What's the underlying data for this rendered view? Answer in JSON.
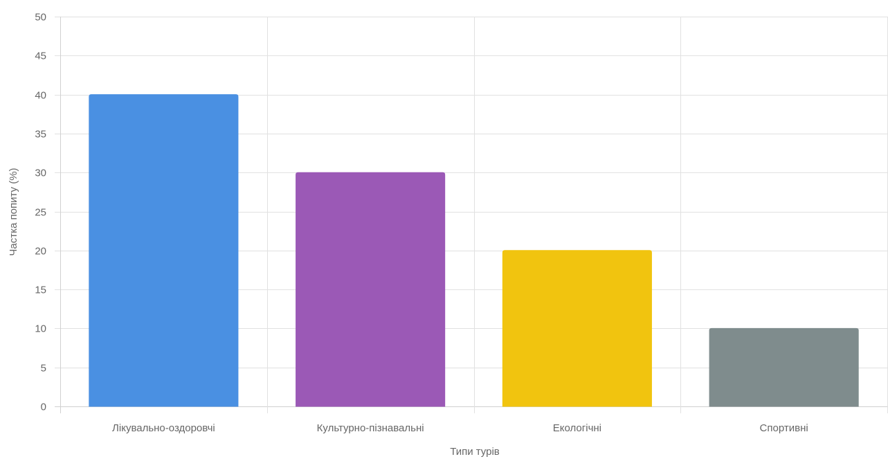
{
  "chart_data": {
    "type": "bar",
    "categories": [
      "Лікувально-оздоровчі",
      "Культурно-пізнавальні",
      "Екологічні",
      "Спортивні"
    ],
    "values": [
      40,
      30,
      20,
      10
    ],
    "colors": [
      "#4a90e2",
      "#9b59b6",
      "#f1c40f",
      "#7f8c8d"
    ],
    "title": "",
    "xlabel": "Типи турів",
    "ylabel": "Частка попиту (%)",
    "ylim": [
      0,
      50
    ],
    "yticks": [
      0,
      5,
      10,
      15,
      20,
      25,
      30,
      35,
      40,
      45,
      50
    ],
    "grid": true,
    "legend": "none"
  }
}
